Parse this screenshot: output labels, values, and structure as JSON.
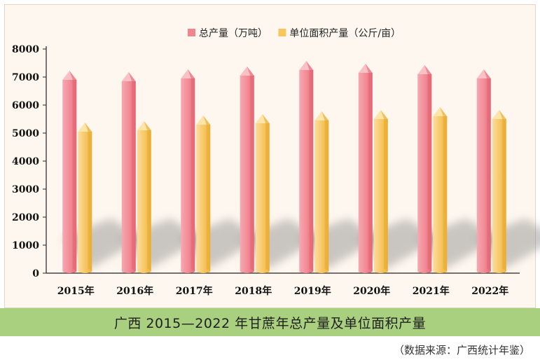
{
  "caption": "广西 2015—2022 年甘蔗年总产量及单位面积产量",
  "source": "（数据来源：广西统计年鉴）",
  "chart_data": {
    "type": "bar",
    "categories": [
      "2015年",
      "2016年",
      "2017年",
      "2018年",
      "2019年",
      "2020年",
      "2021年",
      "2022年"
    ],
    "series": [
      {
        "name": "总产量（万吨）",
        "color": "#f0848f",
        "values": [
          6900,
          6850,
          6950,
          7050,
          7250,
          7150,
          7100,
          6950
        ]
      },
      {
        "name": "单位面积产量（公斤/亩）",
        "color": "#f7c65c",
        "values": [
          5050,
          5100,
          5300,
          5350,
          5450,
          5500,
          5600,
          5500
        ]
      }
    ],
    "yticks": [
      0,
      1000,
      2000,
      3000,
      4000,
      5000,
      6000,
      7000,
      8000
    ],
    "ylim": [
      0,
      8000
    ],
    "legend": "top-center"
  }
}
